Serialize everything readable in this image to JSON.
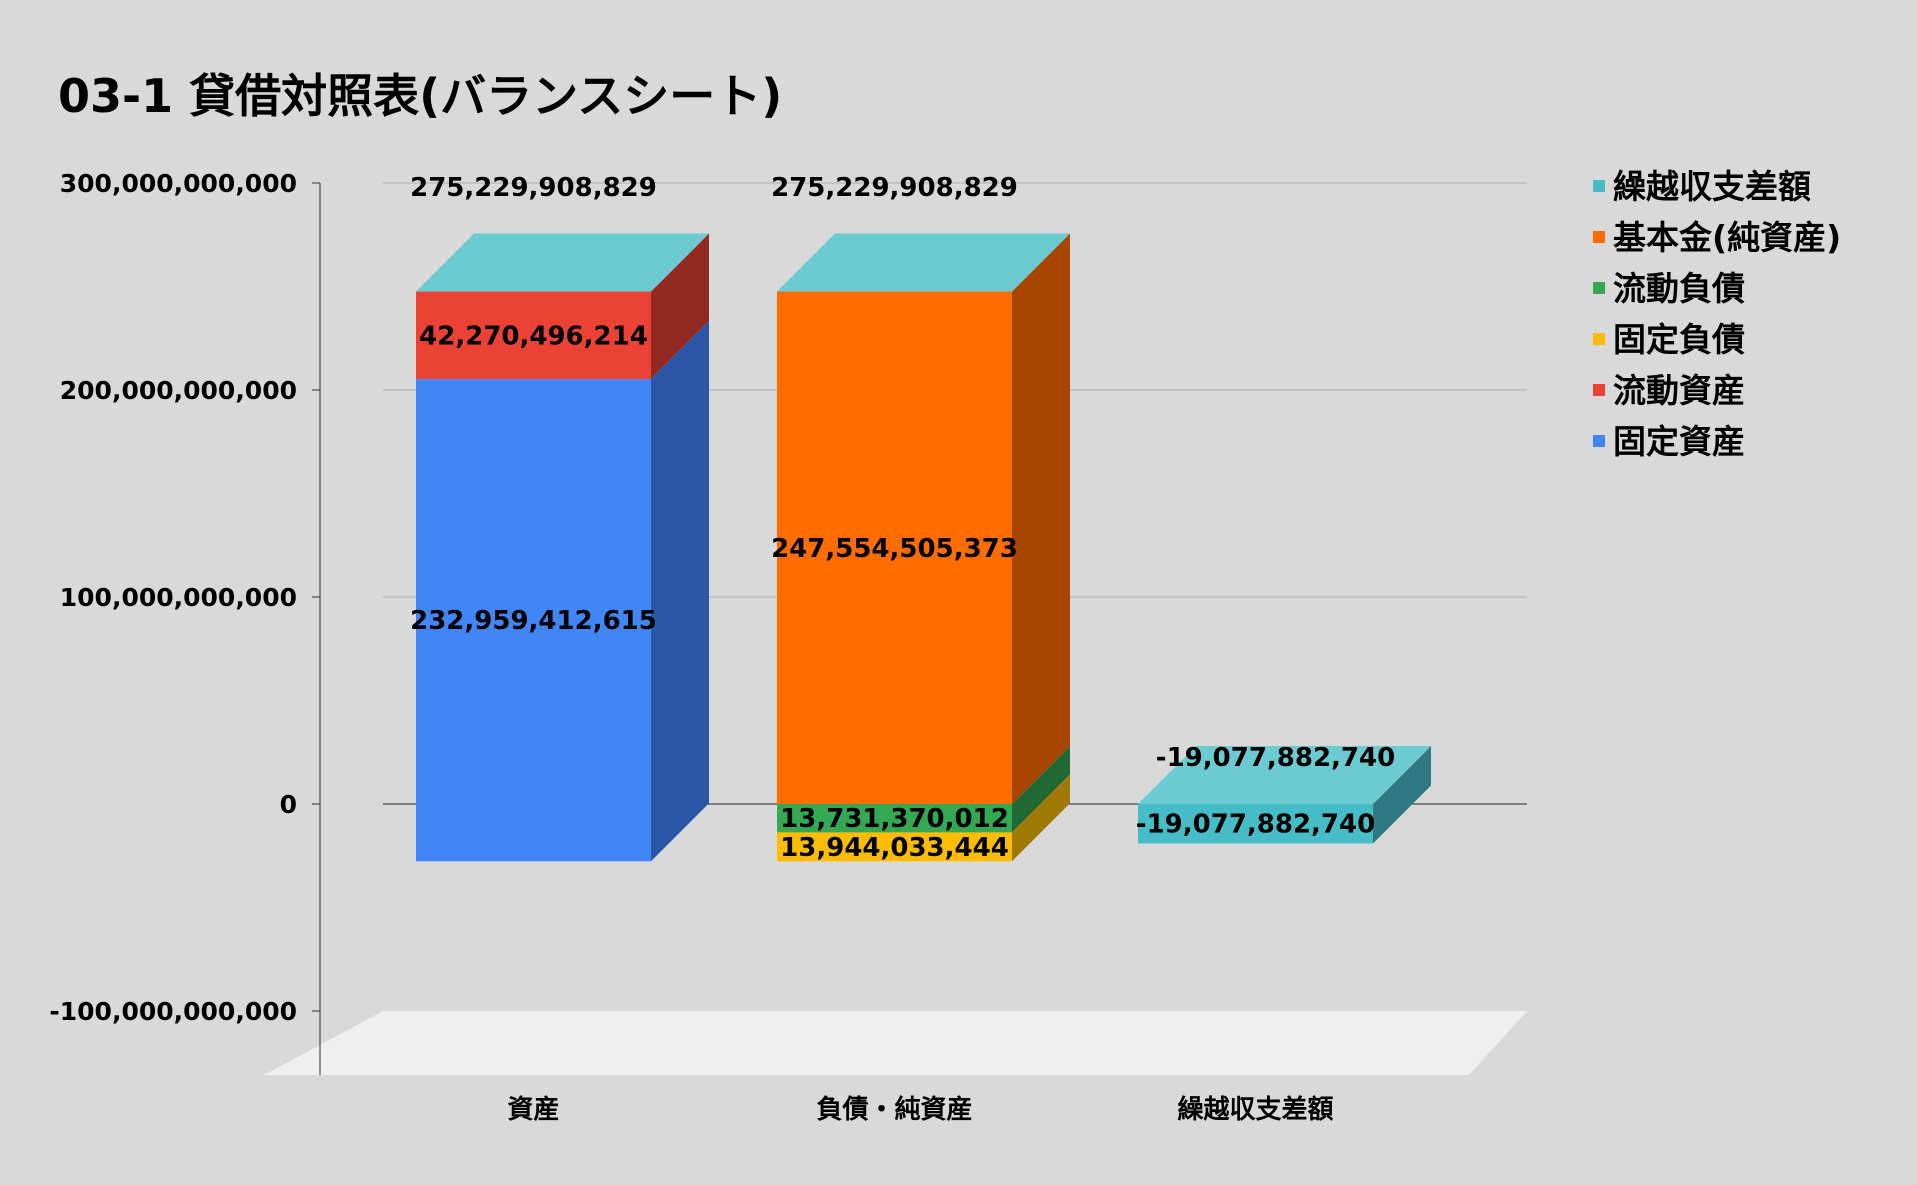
{
  "chart_data": {
    "type": "bar",
    "title": "03-1 貸借対照表(バランスシート)",
    "categories": [
      "資産",
      "負債・純資産",
      "繰越収支差額"
    ],
    "y_ticks": [
      "300,000,000,000",
      "200,000,000,000",
      "100,000,000,000",
      "0",
      "-100,000,000,000"
    ],
    "ylim": [
      -100000000000,
      300000000000
    ],
    "grid": true,
    "legend_position": "right",
    "series": [
      {
        "name": "固定資産",
        "color": "#4285f4",
        "side_color": "#2a56a6",
        "values": [
          232959412615,
          null,
          null
        ],
        "labels": [
          "232,959,412,615",
          "",
          ""
        ]
      },
      {
        "name": "流動資産",
        "color": "#ea4335",
        "side_color": "#932a22",
        "values": [
          42270496214,
          null,
          null
        ],
        "labels": [
          "42,270,496,214",
          "",
          ""
        ]
      },
      {
        "name": "固定負債",
        "color": "#fbbc04",
        "side_color": "#a07a05",
        "values": [
          null,
          13944033444,
          null
        ],
        "labels": [
          "",
          "13,944,033,444",
          ""
        ]
      },
      {
        "name": "流動負債",
        "color": "#34a853",
        "side_color": "#216a35",
        "values": [
          null,
          13731370012,
          null
        ],
        "labels": [
          "",
          "13,731,370,012",
          ""
        ]
      },
      {
        "name": "基本金(純資産)",
        "color": "#ff6d01",
        "side_color": "#a84500",
        "values": [
          null,
          247554505373,
          null
        ],
        "labels": [
          "",
          "247,554,505,373",
          ""
        ]
      },
      {
        "name": "繰越収支差額",
        "color": "#46bdc6",
        "side_color": "#2e7a80",
        "values": [
          null,
          null,
          -19077882740
        ],
        "labels": [
          "",
          "",
          "-19,077,882,740"
        ]
      }
    ],
    "totals": [
      "275,229,908,829",
      "275,229,908,829",
      "-19,077,882,740"
    ],
    "legend_order": [
      "繰越収支差額",
      "基本金(純資産)",
      "流動負債",
      "固定負債",
      "流動資産",
      "固定資産"
    ]
  }
}
